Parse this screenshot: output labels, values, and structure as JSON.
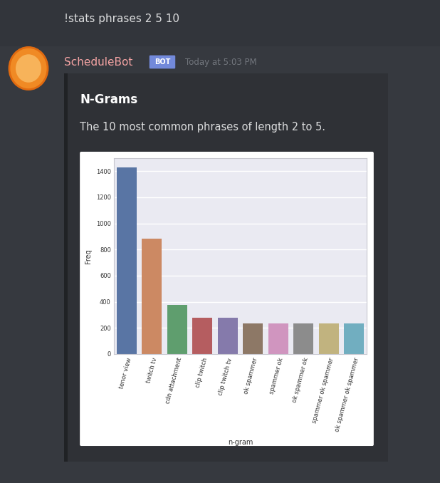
{
  "message": {
    "text": "!stats phrases 2 5 10"
  },
  "reply": {
    "author": "ScheduleBot",
    "badge": "BOT",
    "timestamp": "Today at 5:03 PM"
  },
  "embed": {
    "title": "N-Grams",
    "description": "The 10 most common phrases of length 2 to 5."
  },
  "chart_data": {
    "type": "bar",
    "categories": [
      "tenor view",
      "twitch tv",
      "cdn attachment",
      "clip twitch",
      "clip twitch tv",
      "ok spammer",
      "spammer ok",
      "ok spammer ok",
      "spammer ok spammer",
      "ok spammer ok spammer"
    ],
    "values": [
      1430,
      885,
      375,
      278,
      278,
      237,
      232,
      232,
      232,
      232
    ],
    "colors": [
      "#5975a4",
      "#cc8963",
      "#5f9e6e",
      "#b55d60",
      "#857aab",
      "#8d7866",
      "#d095bf",
      "#8c8c8c",
      "#c1b37f",
      "#71aec0"
    ],
    "xlabel": "n-gram",
    "ylabel": "Freq",
    "ylim": [
      0,
      1500
    ],
    "yticks": [
      0,
      200,
      400,
      600,
      800,
      1000,
      1200,
      1400
    ],
    "grid": true
  }
}
